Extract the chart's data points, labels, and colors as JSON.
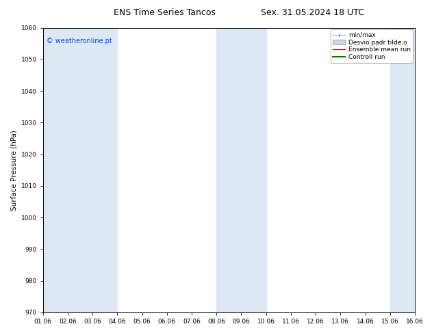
{
  "title_left": "ENS Time Series Tancos",
  "title_right": "Sex. 31.05.2024 18 UTC",
  "ylabel": "Surface Pressure (hPa)",
  "ylim": [
    970,
    1060
  ],
  "yticks": [
    970,
    980,
    990,
    1000,
    1010,
    1020,
    1030,
    1040,
    1050,
    1060
  ],
  "xlim": [
    0,
    15
  ],
  "xtick_labels": [
    "01.06",
    "02.06",
    "03.06",
    "04.06",
    "05.06",
    "06.06",
    "07.06",
    "08.06",
    "09.06",
    "10.06",
    "11.06",
    "12.06",
    "13.06",
    "14.06",
    "15.06",
    "16.06"
  ],
  "xtick_positions": [
    0,
    1,
    2,
    3,
    4,
    5,
    6,
    7,
    8,
    9,
    10,
    11,
    12,
    13,
    14,
    15
  ],
  "shaded_bands": [
    0,
    1,
    2,
    7,
    8,
    14,
    15
  ],
  "band_color": "#dce9f5",
  "background_color": "#ffffff",
  "watermark": "© weatheronline.pt",
  "title_fontsize": 9,
  "tick_fontsize": 6.5,
  "ylabel_fontsize": 7.5,
  "watermark_fontsize": 7,
  "legend_fontsize": 6.5
}
